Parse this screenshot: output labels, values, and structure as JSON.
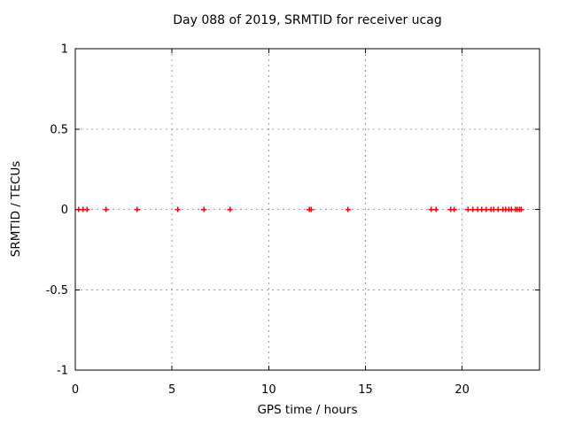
{
  "window": {
    "background_color": "#ffffff",
    "text_color": "#000000"
  },
  "chart_data": {
    "type": "scatter",
    "title": "Day 088 of 2019, SRMTID for receiver ucag",
    "xlabel": "GPS time / hours",
    "ylabel": "SRMTID / TECUs",
    "xlim": [
      0,
      24
    ],
    "ylim": [
      -1,
      1
    ],
    "xticks": [
      0,
      5,
      10,
      15,
      20
    ],
    "yticks": [
      1,
      0.5,
      0,
      -0.5,
      -1
    ],
    "grid": true,
    "grid_style": "dotted",
    "legend_position": "none",
    "marker": "plus",
    "marker_color": "#ff0000",
    "axis_color": "#000000",
    "grid_color": "#9e9e9e",
    "series": [
      {
        "name": "SRMTID",
        "x": [
          0.18,
          0.4,
          0.6,
          1.6,
          3.2,
          5.3,
          6.65,
          8.0,
          12.1,
          12.2,
          14.1,
          18.4,
          18.65,
          19.4,
          19.6,
          20.3,
          20.55,
          20.8,
          21.0,
          21.25,
          21.5,
          21.62,
          21.85,
          22.1,
          22.25,
          22.4,
          22.55,
          22.75,
          22.85,
          22.95,
          23.05
        ],
        "y": [
          0,
          0,
          0,
          0,
          0,
          0,
          0,
          0,
          0,
          0,
          0,
          0,
          0,
          0,
          0,
          0,
          0,
          0,
          0,
          0,
          0,
          0,
          0,
          0,
          0,
          0,
          0,
          0,
          0,
          0,
          0
        ]
      }
    ]
  }
}
